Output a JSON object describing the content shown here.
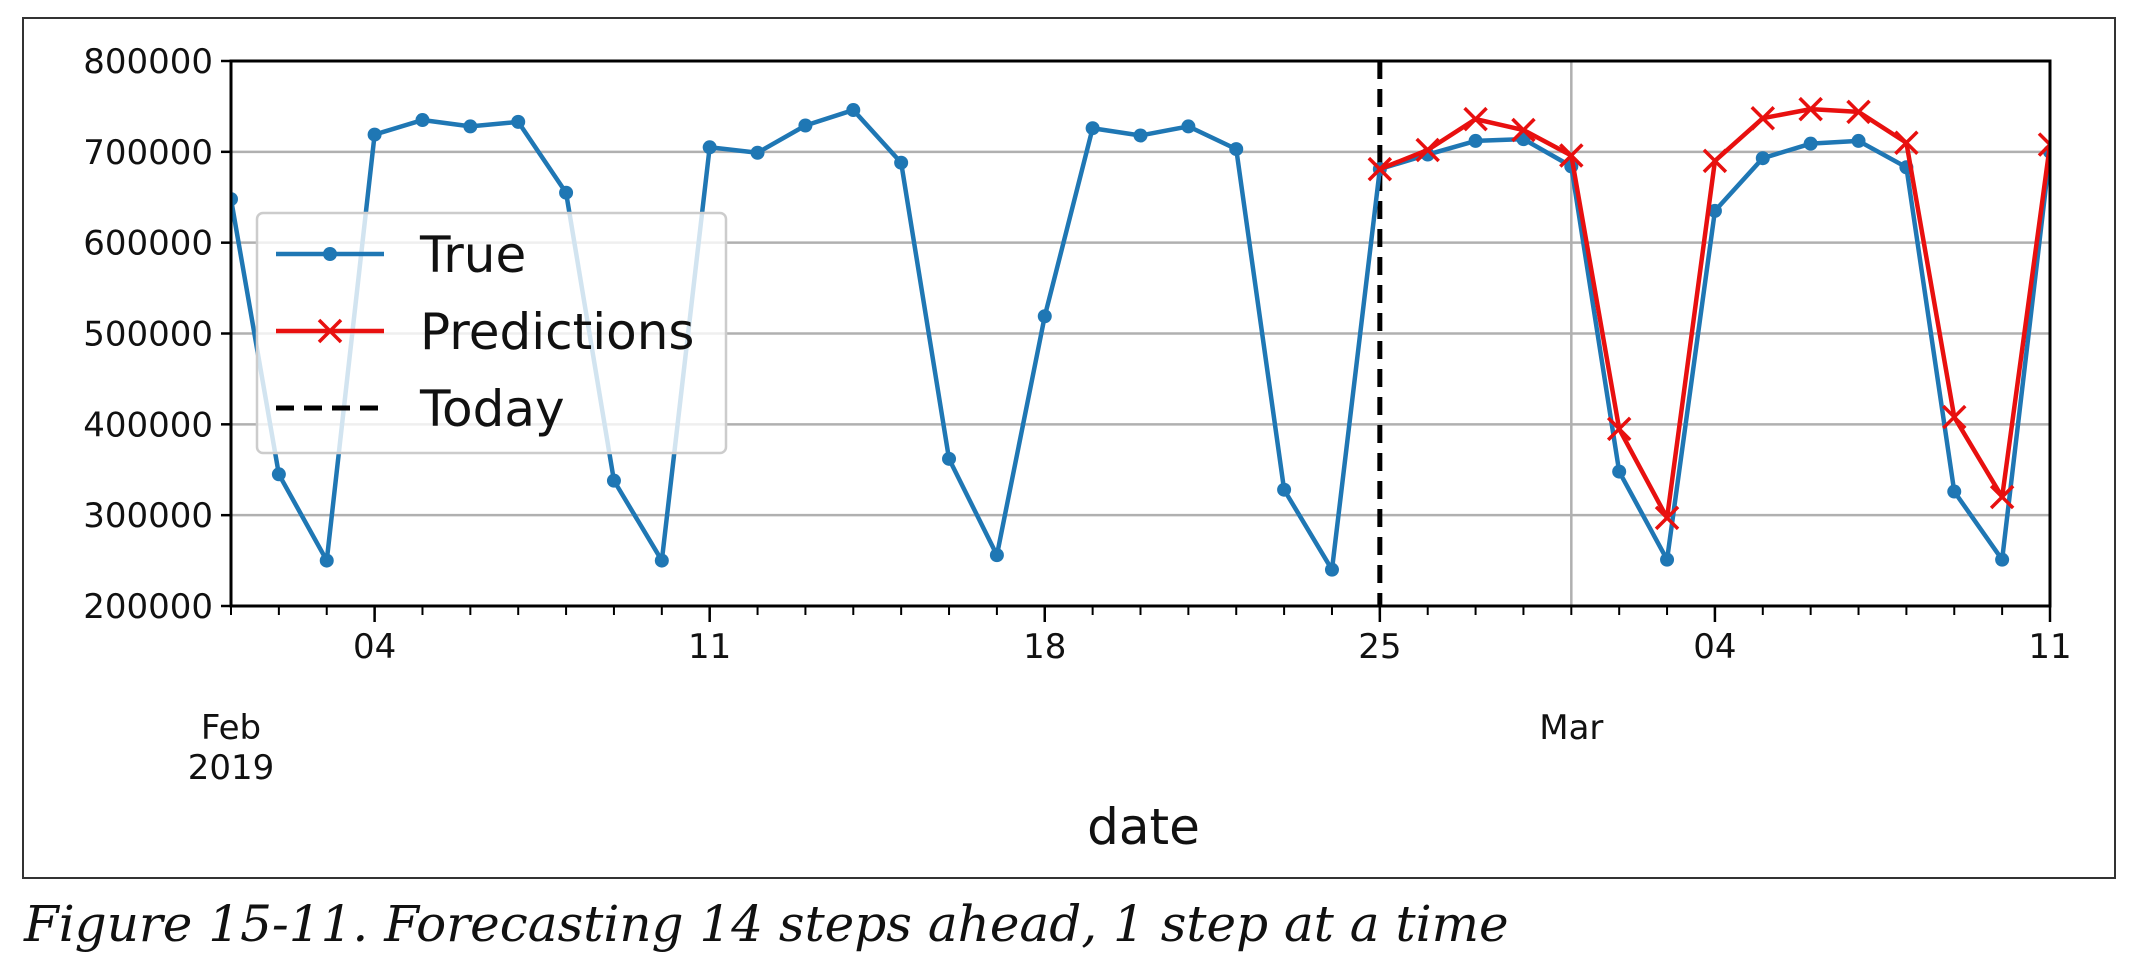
{
  "caption": "Figure 15-11. Forecasting 14 steps ahead, 1 step at a time",
  "chart_data": {
    "type": "line",
    "xlabel": "date",
    "ylabel": "",
    "x_start": "2019-02-01",
    "x_end": "2019-03-11",
    "ylim": [
      200000,
      800000
    ],
    "yticks": [
      200000,
      300000,
      400000,
      500000,
      600000,
      700000,
      800000
    ],
    "xticks": [
      {
        "date": "2019-02-04",
        "label": "04"
      },
      {
        "date": "2019-02-11",
        "label": "11"
      },
      {
        "date": "2019-02-18",
        "label": "18"
      },
      {
        "date": "2019-02-25",
        "label": "25"
      },
      {
        "date": "2019-03-04",
        "label": "04"
      },
      {
        "date": "2019-03-11",
        "label": "11"
      }
    ],
    "month_labels": [
      {
        "date": "2019-02-01",
        "lines": [
          "Feb",
          "2019"
        ]
      },
      {
        "date": "2019-03-01",
        "lines": [
          "Mar"
        ]
      }
    ],
    "grid": true,
    "vertical_gridlines": [
      "2019-03-01"
    ],
    "legend_position": "center-left",
    "series": [
      {
        "name": "True",
        "color": "#1f77b4",
        "marker": "circle",
        "points": [
          [
            "2019-02-01",
            648000
          ],
          [
            "2019-02-02",
            345000
          ],
          [
            "2019-02-03",
            250000
          ],
          [
            "2019-02-04",
            719000
          ],
          [
            "2019-02-05",
            735000
          ],
          [
            "2019-02-06",
            728000
          ],
          [
            "2019-02-07",
            733000
          ],
          [
            "2019-02-08",
            655000
          ],
          [
            "2019-02-09",
            338000
          ],
          [
            "2019-02-10",
            250000
          ],
          [
            "2019-02-11",
            705000
          ],
          [
            "2019-02-12",
            699000
          ],
          [
            "2019-02-13",
            729000
          ],
          [
            "2019-02-14",
            746000
          ],
          [
            "2019-02-15",
            688000
          ],
          [
            "2019-02-16",
            362000
          ],
          [
            "2019-02-17",
            256000
          ],
          [
            "2019-02-18",
            519000
          ],
          [
            "2019-02-19",
            726000
          ],
          [
            "2019-02-20",
            718000
          ],
          [
            "2019-02-21",
            728000
          ],
          [
            "2019-02-22",
            703000
          ],
          [
            "2019-02-23",
            328000
          ],
          [
            "2019-02-24",
            240000
          ],
          [
            "2019-02-25",
            681000
          ],
          [
            "2019-02-26",
            697000
          ],
          [
            "2019-02-27",
            712000
          ],
          [
            "2019-02-28",
            714000
          ],
          [
            "2019-03-01",
            684000
          ],
          [
            "2019-03-02",
            348000
          ],
          [
            "2019-03-03",
            251000
          ],
          [
            "2019-03-04",
            635000
          ],
          [
            "2019-03-05",
            693000
          ],
          [
            "2019-03-06",
            709000
          ],
          [
            "2019-03-07",
            712000
          ],
          [
            "2019-03-08",
            683000
          ],
          [
            "2019-03-09",
            326000
          ],
          [
            "2019-03-10",
            251000
          ],
          [
            "2019-03-11",
            700000
          ]
        ]
      },
      {
        "name": "Predictions",
        "color": "#e8100f",
        "marker": "x",
        "points": [
          [
            "2019-02-25",
            681000
          ],
          [
            "2019-02-26",
            702000
          ],
          [
            "2019-02-27",
            736000
          ],
          [
            "2019-02-28",
            724000
          ],
          [
            "2019-03-01",
            696000
          ],
          [
            "2019-03-02",
            395000
          ],
          [
            "2019-03-03",
            297000
          ],
          [
            "2019-03-04",
            690000
          ],
          [
            "2019-03-05",
            737000
          ],
          [
            "2019-03-06",
            747000
          ],
          [
            "2019-03-07",
            744000
          ],
          [
            "2019-03-08",
            710000
          ],
          [
            "2019-03-09",
            408000
          ],
          [
            "2019-03-10",
            320000
          ],
          [
            "2019-03-11",
            708000
          ]
        ]
      },
      {
        "name": "Today",
        "color": "#000000",
        "style": "dashed",
        "x": "2019-02-25"
      }
    ]
  }
}
